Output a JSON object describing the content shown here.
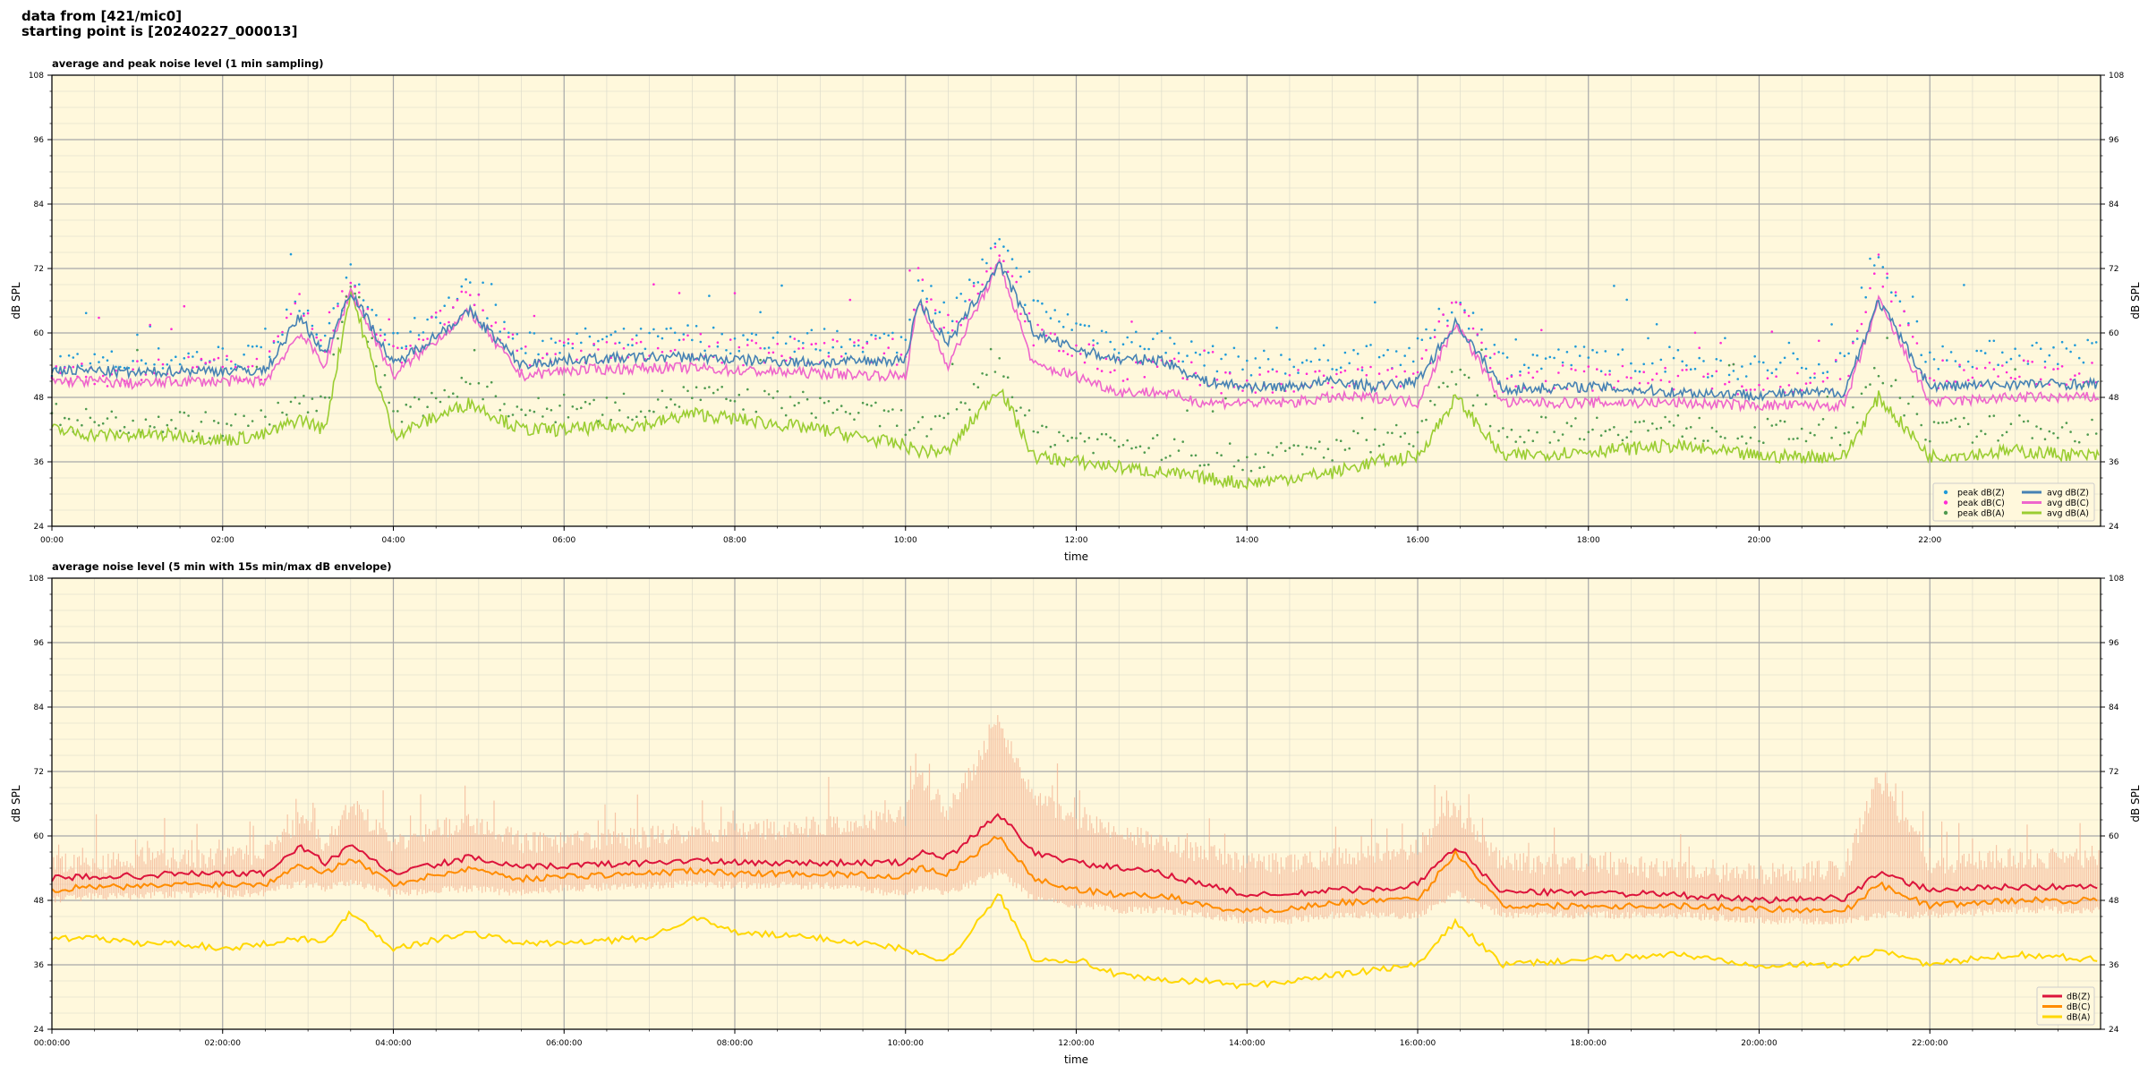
{
  "page": {
    "title_line1": "data from [421/mic0]",
    "title_line2": "starting point is [20240227_000013]"
  },
  "colors": {
    "plot_bg": "#fff8dc",
    "peak_z": "#1f9ad8",
    "peak_c": "#ff2ad4",
    "peak_a": "#4f9a4f",
    "avg_z": "#4682b4",
    "avg_c": "#ee66cc",
    "avg_a": "#9acd32",
    "dbz": "#dc143c",
    "dbc": "#ff8c00",
    "dba": "#ffd700",
    "envelope": "#f4b494"
  },
  "chart_data": [
    {
      "type": "line",
      "title": "average and peak noise level (1 min sampling)",
      "xlabel": "time",
      "ylabel": "dB SPL",
      "xlim": [
        0,
        24
      ],
      "ylim": [
        24,
        108
      ],
      "yticks": [
        24,
        36,
        48,
        60,
        72,
        84,
        96,
        108
      ],
      "xtick_labels": [
        "00:00",
        "02:00",
        "04:00",
        "06:00",
        "08:00",
        "10:00",
        "12:00",
        "14:00",
        "16:00",
        "18:00",
        "20:00",
        "22:00"
      ],
      "grid": true,
      "legend": "bottom-right",
      "legend_entries": [
        "peak dB(Z)",
        "peak dB(C)",
        "peak dB(A)",
        "avg dB(Z)",
        "avg dB(C)",
        "avg dB(A)"
      ],
      "x": [
        0,
        0.5,
        1,
        1.5,
        2,
        2.5,
        2.9,
        3.2,
        3.5,
        4,
        4.9,
        5.5,
        6,
        7,
        7.5,
        8,
        9,
        10,
        10.15,
        10.5,
        11.1,
        11.5,
        12,
        12.5,
        13,
        13.5,
        14,
        14.5,
        15,
        15.5,
        16,
        16.45,
        17,
        18,
        19,
        20,
        21,
        21.4,
        22,
        23,
        23.98
      ],
      "series": [
        {
          "name": "avg dB(Z)",
          "values": [
            53,
            53,
            52.5,
            53,
            53,
            53,
            63,
            56,
            68,
            54,
            64,
            54,
            55,
            55.5,
            55.5,
            55,
            54.5,
            55,
            66,
            58,
            73,
            60,
            57,
            55,
            55,
            51,
            50,
            50,
            51,
            50,
            51,
            62,
            49.5,
            50,
            49,
            48.5,
            49,
            66,
            50,
            50.5,
            50.5
          ]
        },
        {
          "name": "avg dB(C)",
          "values": [
            51,
            51,
            50.5,
            51,
            51,
            51,
            60,
            54,
            68,
            52,
            64,
            52,
            53,
            53.5,
            53.5,
            53,
            52.5,
            52,
            66,
            54,
            73,
            54,
            52,
            49,
            49,
            47,
            47,
            47,
            48,
            48,
            47,
            62,
            47,
            47,
            47,
            46.5,
            46.5,
            66,
            47,
            48,
            48
          ]
        },
        {
          "name": "avg dB(A)",
          "values": [
            42,
            41,
            41,
            41,
            40,
            41,
            44,
            42,
            68,
            41,
            47,
            42,
            42,
            43,
            45,
            44,
            42,
            39,
            38,
            38,
            50,
            37,
            36,
            35,
            34,
            33,
            32,
            33,
            34,
            36,
            37,
            48,
            37,
            38,
            39,
            37,
            37,
            48,
            37,
            38,
            37
          ]
        },
        {
          "name": "peak dB(Z)",
          "values": [
            54,
            54,
            54,
            55,
            55,
            55,
            66,
            58,
            70,
            57,
            68,
            57,
            58,
            58,
            59,
            58,
            58,
            58,
            70,
            62,
            76,
            64,
            61,
            58,
            58,
            55,
            54,
            54,
            55,
            55,
            56,
            66,
            54,
            55,
            54,
            53,
            54,
            72,
            55,
            56,
            56
          ]
        },
        {
          "name": "peak dB(C)",
          "values": [
            52,
            52,
            52,
            53,
            53,
            53,
            64,
            56,
            70,
            55,
            66,
            55,
            56,
            56,
            57,
            56,
            56,
            56,
            70,
            58,
            76,
            59,
            56,
            53,
            53,
            51,
            50,
            50,
            51,
            51,
            51,
            66,
            51,
            51,
            51,
            50,
            50,
            72,
            51,
            52,
            52
          ]
        },
        {
          "name": "peak dB(A)",
          "values": [
            44,
            43,
            43,
            43,
            42,
            43,
            47,
            45,
            70,
            44,
            50,
            45,
            45,
            46,
            48,
            47,
            46,
            43,
            42,
            42,
            54,
            41,
            40,
            39,
            38,
            37,
            36,
            37,
            38,
            40,
            41,
            52,
            41,
            42,
            42,
            41,
            41,
            52,
            41,
            42,
            41
          ]
        }
      ]
    },
    {
      "type": "line",
      "title": "average noise level (5 min with 15s min/max dB envelope)",
      "xlabel": "time",
      "ylabel": "dB SPL",
      "xlim": [
        0,
        24
      ],
      "ylim": [
        24,
        108
      ],
      "yticks": [
        24,
        36,
        48,
        60,
        72,
        84,
        96,
        108
      ],
      "xtick_labels": [
        "00:00:00",
        "02:00:00",
        "04:00:00",
        "06:00:00",
        "08:00:00",
        "10:00:00",
        "12:00:00",
        "14:00:00",
        "16:00:00",
        "18:00:00",
        "20:00:00",
        "22:00:00"
      ],
      "grid": true,
      "legend": "bottom-right",
      "legend_entries": [
        "dB(Z)",
        "dB(C)",
        "dB(A)"
      ],
      "x": [
        0,
        0.5,
        1,
        1.5,
        2,
        2.5,
        2.9,
        3.2,
        3.5,
        4,
        4.9,
        5.5,
        6,
        7,
        7.5,
        8,
        9,
        10,
        10.15,
        10.5,
        11.1,
        11.5,
        12,
        12.5,
        13,
        13.5,
        14,
        14.5,
        15,
        15.5,
        16,
        16.45,
        17,
        18,
        19,
        20,
        21,
        21.4,
        22,
        23,
        23.98
      ],
      "series": [
        {
          "name": "dB(Z)",
          "values": [
            52,
            52.5,
            52.5,
            53,
            53,
            53,
            58,
            55,
            58,
            53,
            56,
            54,
            54.5,
            55,
            55.5,
            55,
            55,
            55,
            57,
            56,
            64,
            57,
            55,
            54,
            53,
            51,
            49,
            49,
            50,
            50,
            51,
            58,
            49.5,
            49.5,
            49,
            48,
            48.5,
            53,
            50,
            50.5,
            50.5
          ]
        },
        {
          "name": "dB(C)",
          "values": [
            50,
            50.5,
            50.5,
            51,
            51,
            51,
            55,
            53,
            56,
            51,
            54,
            52,
            52.5,
            53,
            53.5,
            53,
            53,
            52.5,
            54,
            53,
            60,
            52,
            50,
            49,
            49,
            47,
            46,
            46.5,
            47.5,
            48,
            48,
            57,
            47,
            47,
            47,
            46.5,
            46,
            51,
            47,
            48,
            48
          ]
        },
        {
          "name": "dB(A)",
          "values": [
            41,
            41,
            40,
            40,
            39,
            40,
            41,
            40,
            46,
            39,
            42,
            40,
            40,
            41,
            45,
            42,
            41,
            39,
            38,
            37,
            49,
            37,
            37,
            34,
            33,
            33,
            32,
            33,
            34,
            35,
            36,
            44,
            36,
            37,
            38,
            36,
            36,
            39,
            36,
            38,
            37
          ]
        },
        {
          "name": "envelope max",
          "values": [
            54,
            54,
            55,
            55,
            55,
            56,
            62,
            58,
            65,
            58,
            62,
            58,
            58,
            59,
            60,
            60,
            61,
            63,
            70,
            64,
            80,
            66,
            62,
            60,
            58,
            56,
            54,
            54,
            55,
            56,
            57,
            64,
            54,
            54,
            53,
            52,
            53,
            70,
            54,
            55,
            55
          ]
        },
        {
          "name": "envelope min",
          "values": [
            49,
            49.5,
            49.5,
            50,
            50,
            50,
            52,
            51,
            52,
            50,
            51,
            50,
            51,
            51.5,
            52,
            51.5,
            51.5,
            50,
            51,
            50,
            54,
            49,
            48,
            47,
            47,
            46,
            45,
            45,
            46,
            46,
            46,
            50,
            46,
            46,
            46,
            45,
            45,
            46,
            46,
            47,
            47
          ]
        }
      ]
    }
  ]
}
